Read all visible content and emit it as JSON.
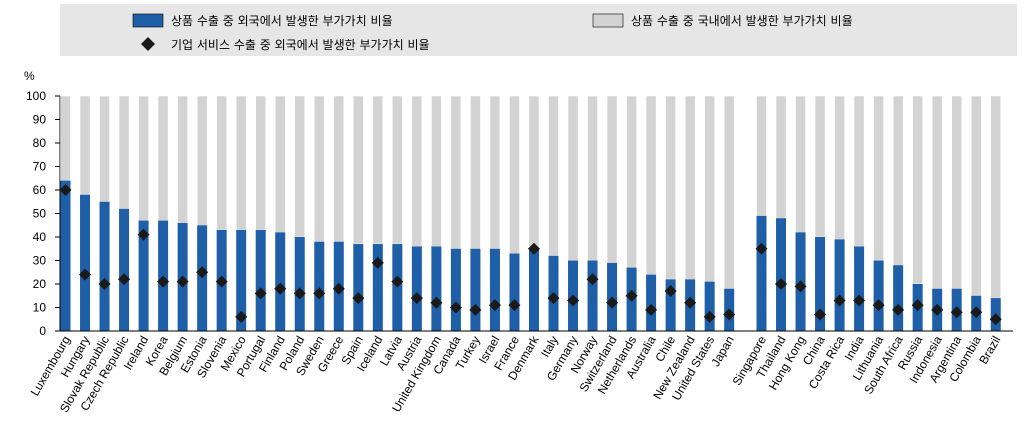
{
  "chart_data": {
    "type": "bar",
    "stacked": true,
    "ylabel": "%",
    "ylim": [
      0,
      100
    ],
    "yticks": [
      0,
      10,
      20,
      30,
      40,
      50,
      60,
      70,
      80,
      90,
      100
    ],
    "grid": false,
    "legend_position": "top",
    "colors": {
      "foreign": "#1f5fa8",
      "domestic": "#d3d3d3",
      "services": "#1a1a1a",
      "legend_bg": "#e6e6e6"
    },
    "series": [
      {
        "name": "상품 수출 중 외국에서 발생한 부가가치 비율",
        "kind": "bar"
      },
      {
        "name": "상품 수출 중 국내에서 발생한 부가가치 비율",
        "kind": "bar"
      },
      {
        "name": "기업 서비스 수출 중 외국에서 발생한 부가가치 비율",
        "kind": "marker"
      }
    ],
    "groups": [
      {
        "categories": [
          "Luxembourg",
          "Hungary",
          "Slovak Republic",
          "Czech Republic",
          "Ireland",
          "Korea",
          "Belgium",
          "Estonia",
          "Slovenia",
          "Mexico",
          "Portugal",
          "Finland",
          "Poland",
          "Sweden",
          "Greece",
          "Spain",
          "Iceland",
          "Latvia",
          "Austria",
          "United Kingdom",
          "Canada",
          "Turkey",
          "Israel",
          "France",
          "Denmark",
          "Italy",
          "Germany",
          "Norway",
          "Switzerland",
          "Netherlands",
          "Australia",
          "Chile",
          "New Zealand",
          "United States",
          "Japan"
        ],
        "foreign": [
          64,
          58,
          55,
          52,
          47,
          47,
          46,
          45,
          43,
          43,
          43,
          42,
          40,
          38,
          38,
          37,
          37,
          37,
          36,
          36,
          35,
          35,
          35,
          33,
          35,
          32,
          30,
          30,
          29,
          27,
          24,
          22,
          22,
          21,
          18
        ],
        "services": [
          60,
          24,
          20,
          22,
          41,
          21,
          21,
          25,
          21,
          6,
          16,
          18,
          16,
          16,
          18,
          14,
          29,
          21,
          14,
          12,
          10,
          9,
          11,
          11,
          35,
          14,
          13,
          22,
          12,
          15,
          9,
          17,
          12,
          6,
          7
        ]
      },
      {
        "categories": [
          "Singapore",
          "Thailand",
          "Hong Kong",
          "China",
          "Costa Rica",
          "India",
          "Lithuania",
          "South Africa",
          "Russia",
          "Indonesia",
          "Argentina",
          "Colombia",
          "Brazil"
        ],
        "foreign": [
          49,
          48,
          42,
          40,
          39,
          36,
          30,
          28,
          20,
          18,
          18,
          15,
          14
        ],
        "services": [
          35,
          20,
          19,
          7,
          13,
          13,
          11,
          9,
          11,
          9,
          8,
          8,
          5
        ]
      }
    ]
  }
}
